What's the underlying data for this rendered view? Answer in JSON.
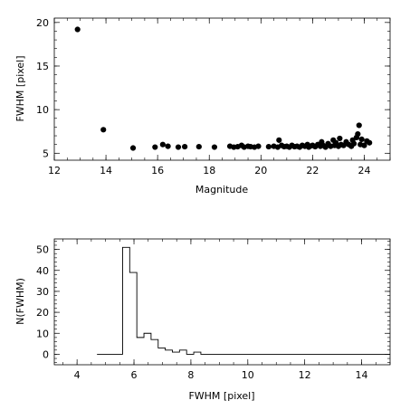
{
  "chart_data": [
    {
      "type": "scatter",
      "xlabel": "Magnitude",
      "ylabel": "FWHM [pixel]",
      "xlim": [
        12,
        25
      ],
      "ylim": [
        4.2,
        20.5
      ],
      "xticks": [
        "12",
        "14",
        "16",
        "18",
        "20",
        "22",
        "24"
      ],
      "yticks": [
        "5",
        "10",
        "15",
        "20"
      ],
      "points": [
        [
          12.9,
          19.2
        ],
        [
          13.9,
          7.7
        ],
        [
          15.05,
          5.6
        ],
        [
          15.9,
          5.7
        ],
        [
          16.2,
          6.0
        ],
        [
          16.4,
          5.8
        ],
        [
          16.8,
          5.7
        ],
        [
          17.05,
          5.75
        ],
        [
          17.6,
          5.75
        ],
        [
          18.2,
          5.7
        ],
        [
          18.8,
          5.8
        ],
        [
          18.95,
          5.7
        ],
        [
          19.1,
          5.75
        ],
        [
          19.25,
          5.9
        ],
        [
          19.35,
          5.7
        ],
        [
          19.5,
          5.8
        ],
        [
          19.6,
          5.75
        ],
        [
          19.75,
          5.7
        ],
        [
          19.9,
          5.8
        ],
        [
          20.3,
          5.75
        ],
        [
          20.5,
          5.8
        ],
        [
          20.65,
          5.7
        ],
        [
          20.7,
          6.5
        ],
        [
          20.8,
          5.9
        ],
        [
          20.9,
          5.75
        ],
        [
          21.0,
          5.8
        ],
        [
          21.1,
          5.7
        ],
        [
          21.2,
          5.9
        ],
        [
          21.3,
          5.75
        ],
        [
          21.4,
          5.8
        ],
        [
          21.5,
          5.7
        ],
        [
          21.6,
          5.9
        ],
        [
          21.7,
          5.8
        ],
        [
          21.8,
          6.0
        ],
        [
          21.85,
          5.7
        ],
        [
          21.9,
          5.8
        ],
        [
          22.0,
          5.9
        ],
        [
          22.1,
          5.75
        ],
        [
          22.2,
          6.0
        ],
        [
          22.3,
          5.8
        ],
        [
          22.35,
          6.3
        ],
        [
          22.4,
          5.9
        ],
        [
          22.5,
          5.7
        ],
        [
          22.6,
          6.1
        ],
        [
          22.7,
          5.8
        ],
        [
          22.8,
          6.5
        ],
        [
          22.85,
          5.9
        ],
        [
          22.9,
          6.2
        ],
        [
          23.0,
          5.8
        ],
        [
          23.05,
          6.7
        ],
        [
          23.1,
          6.0
        ],
        [
          23.2,
          5.9
        ],
        [
          23.3,
          6.3
        ],
        [
          23.4,
          6.0
        ],
        [
          23.5,
          5.8
        ],
        [
          23.55,
          6.5
        ],
        [
          23.6,
          6.1
        ],
        [
          23.7,
          6.8
        ],
        [
          23.75,
          7.2
        ],
        [
          23.8,
          8.2
        ],
        [
          23.85,
          6.0
        ],
        [
          23.9,
          6.6
        ],
        [
          24.0,
          5.9
        ],
        [
          24.1,
          6.4
        ],
        [
          24.2,
          6.2
        ]
      ]
    },
    {
      "type": "histogram",
      "xlabel": "FWHM [pixel]",
      "ylabel": "N(FWHM)",
      "xlim": [
        3.2,
        15
      ],
      "ylim": [
        -5,
        55
      ],
      "xticks": [
        "4",
        "6",
        "8",
        "10",
        "12",
        "14"
      ],
      "yticks": [
        "0",
        "10",
        "20",
        "30",
        "40",
        "50"
      ],
      "bins": [
        {
          "x0": 4.7,
          "x1": 5.6,
          "count": 0
        },
        {
          "x0": 5.6,
          "x1": 5.85,
          "count": 51
        },
        {
          "x0": 5.85,
          "x1": 6.1,
          "count": 39
        },
        {
          "x0": 6.1,
          "x1": 6.35,
          "count": 8
        },
        {
          "x0": 6.35,
          "x1": 6.6,
          "count": 10
        },
        {
          "x0": 6.6,
          "x1": 6.85,
          "count": 7
        },
        {
          "x0": 6.85,
          "x1": 7.1,
          "count": 3
        },
        {
          "x0": 7.1,
          "x1": 7.35,
          "count": 2
        },
        {
          "x0": 7.35,
          "x1": 7.6,
          "count": 1
        },
        {
          "x0": 7.6,
          "x1": 7.85,
          "count": 2
        },
        {
          "x0": 7.85,
          "x1": 8.1,
          "count": 0
        },
        {
          "x0": 8.1,
          "x1": 8.35,
          "count": 1
        },
        {
          "x0": 8.35,
          "x1": 15.0,
          "count": 0
        }
      ]
    }
  ]
}
